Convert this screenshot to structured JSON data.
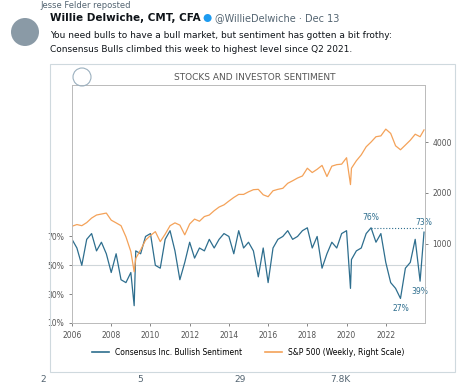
{
  "post": {
    "reposted_by": "Jesse Felder reposted",
    "author": "Willie Delwiche, CMT, CFA",
    "handle": "@WillieDelwiche · Dec 13",
    "text": [
      "You need bulls to have a bull market, but sentiment has gotten a bit frothy:",
      "Consensus Bulls climbed this week to highest level since Q2 2021."
    ],
    "replies": 2,
    "reposts": 5,
    "likes": 29,
    "views": "7.8K"
  },
  "chart_data": {
    "type": "line",
    "title": "STOCKS AND INVESTOR SENTIMENT",
    "x": [
      2006,
      2006.25,
      2006.5,
      2006.75,
      2007,
      2007.25,
      2007.5,
      2007.75,
      2008,
      2008.25,
      2008.5,
      2008.75,
      2009,
      2009.17,
      2009.25,
      2009.5,
      2009.75,
      2010,
      2010.25,
      2010.5,
      2010.75,
      2011,
      2011.25,
      2011.5,
      2011.75,
      2012,
      2012.25,
      2012.5,
      2012.75,
      2013,
      2013.25,
      2013.5,
      2013.75,
      2014,
      2014.25,
      2014.5,
      2014.75,
      2015,
      2015.25,
      2015.5,
      2015.75,
      2016,
      2016.25,
      2016.5,
      2016.75,
      2017,
      2017.25,
      2017.5,
      2017.75,
      2018,
      2018.25,
      2018.5,
      2018.75,
      2019,
      2019.25,
      2019.5,
      2019.75,
      2020,
      2020.2,
      2020.25,
      2020.5,
      2020.75,
      2021,
      2021.25,
      2021.5,
      2021.75,
      2022,
      2022.25,
      2022.5,
      2022.75,
      2023,
      2023.25,
      2023.5,
      2023.75,
      2023.95
    ],
    "series": [
      {
        "name": "Consensus Inc. Bullish Sentiment",
        "color": "#2e6e8e",
        "values": [
          68,
          62,
          50,
          68,
          72,
          60,
          66,
          58,
          45,
          58,
          40,
          38,
          45,
          22,
          60,
          58,
          70,
          72,
          50,
          48,
          68,
          74,
          60,
          40,
          52,
          66,
          55,
          62,
          60,
          68,
          62,
          68,
          72,
          70,
          58,
          74,
          62,
          66,
          60,
          42,
          62,
          38,
          62,
          68,
          70,
          74,
          68,
          70,
          74,
          76,
          62,
          70,
          48,
          58,
          66,
          62,
          72,
          74,
          34,
          54,
          60,
          62,
          72,
          76,
          66,
          72,
          52,
          38,
          34,
          27,
          48,
          52,
          68,
          39,
          73
        ]
      },
      {
        "name": "S&P 500 (Weekly, Right Scale)",
        "color": "#f4a259",
        "axis": "y2",
        "values": [
          1270,
          1300,
          1280,
          1335,
          1420,
          1480,
          1500,
          1520,
          1380,
          1330,
          1280,
          1100,
          900,
          683,
          820,
          920,
          1050,
          1120,
          1180,
          1030,
          1140,
          1280,
          1330,
          1290,
          1130,
          1310,
          1400,
          1360,
          1450,
          1480,
          1570,
          1650,
          1700,
          1790,
          1880,
          1960,
          1960,
          2030,
          2090,
          2100,
          1950,
          1900,
          2060,
          2100,
          2130,
          2280,
          2360,
          2450,
          2520,
          2800,
          2640,
          2760,
          2910,
          2500,
          2880,
          2940,
          2960,
          3230,
          2240,
          2800,
          3100,
          3360,
          3750,
          4000,
          4300,
          4350,
          4770,
          4500,
          3800,
          3600,
          3840,
          4100,
          4450,
          4300,
          4720
        ]
      }
    ],
    "xlim": [
      2006,
      2024
    ],
    "xticks": [
      2006,
      2008,
      2010,
      2012,
      2014,
      2016,
      2018,
      2020,
      2022
    ],
    "ylim": [
      10,
      175
    ],
    "yticks": [
      {
        "value": 10,
        "label": "10%"
      },
      {
        "value": 30,
        "label": "30%"
      },
      {
        "value": 50,
        "label": "50%"
      },
      {
        "value": 70,
        "label": "70%"
      }
    ],
    "y2lim": [
      340,
      8700
    ],
    "y2ticks": [
      1000,
      2000,
      4000
    ],
    "log": "y2",
    "grid": false,
    "legend": "lower center",
    "annotations": [
      {
        "label": "76%",
        "x": 2021.25,
        "value": 76
      },
      {
        "label": "27%",
        "x": 2022.75,
        "value": 27
      },
      {
        "label": "39%",
        "x": 2023.75,
        "value": 39
      },
      {
        "label": "73%",
        "x": 2023.95,
        "value": 73
      }
    ],
    "reference_lines": [
      {
        "value": 50,
        "color": "#cfd6da",
        "line_style": "solid"
      },
      {
        "value": 76,
        "color": "#2e6e8e",
        "line_style": "dotted",
        "x": [
          2021.25,
          2023.95
        ]
      }
    ]
  }
}
